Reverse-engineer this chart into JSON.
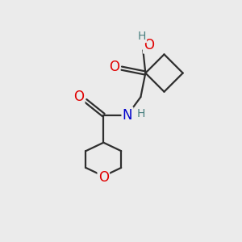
{
  "bg_color": "#ebebeb",
  "atom_colors": {
    "C": "#2f2f2f",
    "O": "#e00000",
    "N": "#0000cc",
    "H_acid": "#4a8080",
    "H_n": "#4a8080"
  },
  "bond_color": "#2f2f2f",
  "bond_width": 1.6,
  "font_size_atom": 12,
  "font_size_h": 10
}
